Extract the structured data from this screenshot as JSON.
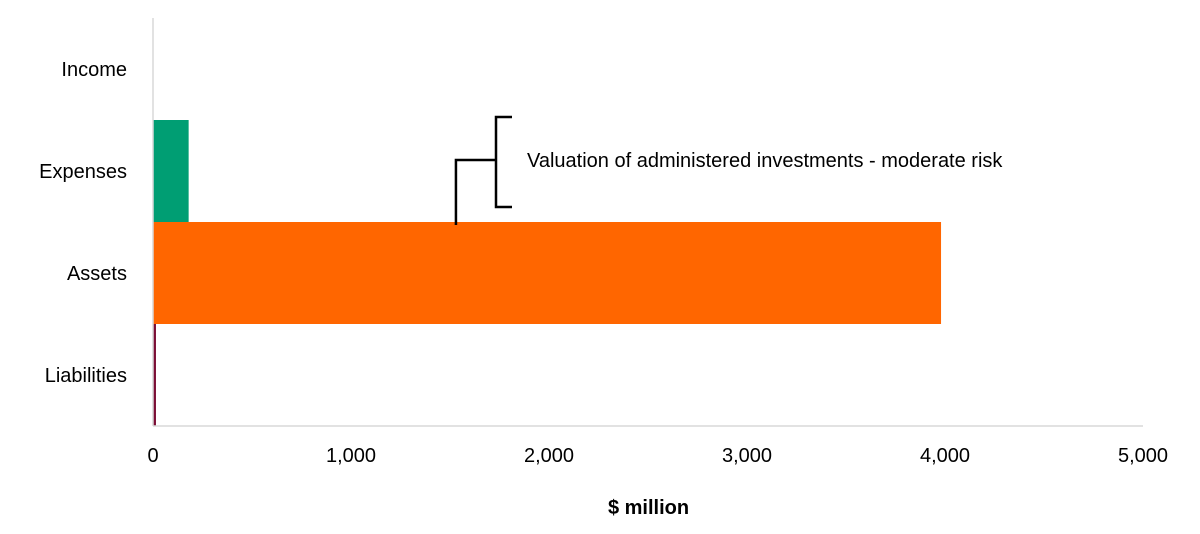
{
  "chart_data": {
    "type": "bar",
    "orientation": "horizontal",
    "categories": [
      "Income",
      "Expenses",
      "Assets",
      "Liabilities"
    ],
    "values": [
      0,
      180,
      3980,
      15
    ],
    "colors": [
      "#ffffff",
      "#009e73",
      "#ff6600",
      "#7b0d35"
    ],
    "xlabel": "$ million",
    "xlim": [
      0,
      5000
    ],
    "xticks": [
      0,
      1000,
      2000,
      3000,
      4000,
      5000
    ],
    "xtick_labels": [
      "0",
      "1,000",
      "2,000",
      "3,000",
      "4,000",
      "5,000"
    ],
    "grid": false,
    "legend": "none",
    "annotations": [
      {
        "text": "Valuation of administered investments - moderate risk",
        "target": "Assets",
        "x": 1530
      }
    ]
  }
}
